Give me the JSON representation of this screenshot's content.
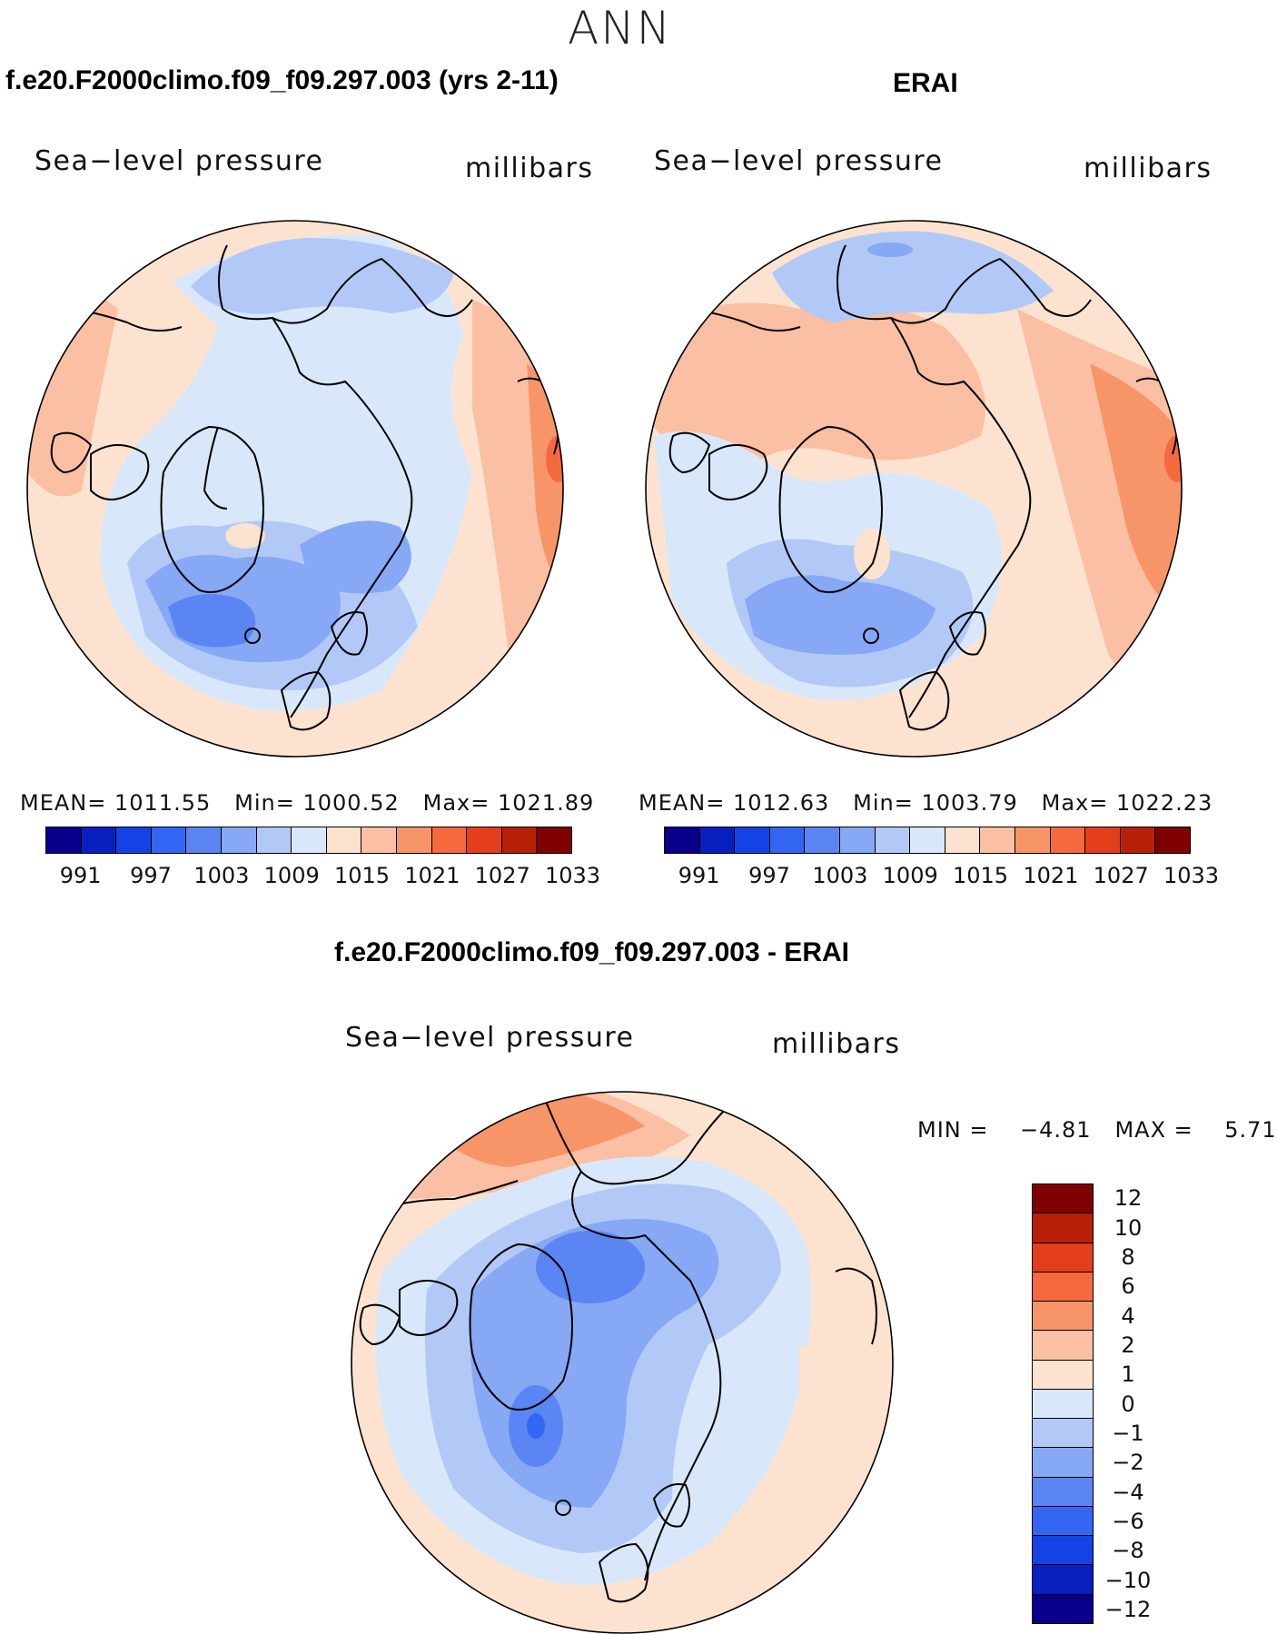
{
  "season": "ANN",
  "panels": [
    {
      "title": "f.e20.F2000climo.f09_f09.297.003 (yrs 2-11)",
      "subtitle": "Sea−level pressure",
      "units": "millibars",
      "stats": {
        "mean_label": "MEAN=",
        "mean": "1011.55",
        "min_label": "Min=",
        "min": "1000.52",
        "max_label": "Max=",
        "max": "1021.89"
      }
    },
    {
      "title": "ERAI",
      "subtitle": "Sea−level pressure",
      "units": "millibars",
      "stats": {
        "mean_label": "MEAN=",
        "mean": "1012.63",
        "min_label": "Min=",
        "min": "1003.79",
        "max_label": "Max=",
        "max": "1022.23"
      }
    },
    {
      "title": "f.e20.F2000climo.f09_f09.297.003 - ERAI",
      "subtitle": "Sea−level pressure",
      "units": "millibars",
      "stats": {
        "min_label": "MIN =",
        "min": "−4.81",
        "max_label": "MAX =",
        "max": "5.71"
      }
    }
  ],
  "colorbar_abs": {
    "ticks": [
      "991",
      "997",
      "1003",
      "1009",
      "1015",
      "1021",
      "1027",
      "1033"
    ],
    "colors": [
      "#08008a",
      "#0a1fbf",
      "#1442e6",
      "#3366f2",
      "#5a85f2",
      "#86a8f5",
      "#b2c9f7",
      "#d8e8fa",
      "#fde3cf",
      "#fbbfa3",
      "#f79569",
      "#f46a3e",
      "#e33e1c",
      "#b82108",
      "#7f0000"
    ]
  },
  "colorbar_diff": {
    "ticks": [
      "12",
      "10",
      "8",
      "6",
      "4",
      "2",
      "1",
      "0",
      "−1",
      "−2",
      "−4",
      "−6",
      "−8",
      "−10",
      "−12"
    ],
    "colors": [
      "#7f0000",
      "#b82108",
      "#e33e1c",
      "#f46a3e",
      "#f79569",
      "#fbbfa3",
      "#fde3cf",
      "#d8e8fa",
      "#b2c9f7",
      "#86a8f5",
      "#5a85f2",
      "#3366f2",
      "#1442e6",
      "#0a1fbf",
      "#08008a"
    ]
  }
}
